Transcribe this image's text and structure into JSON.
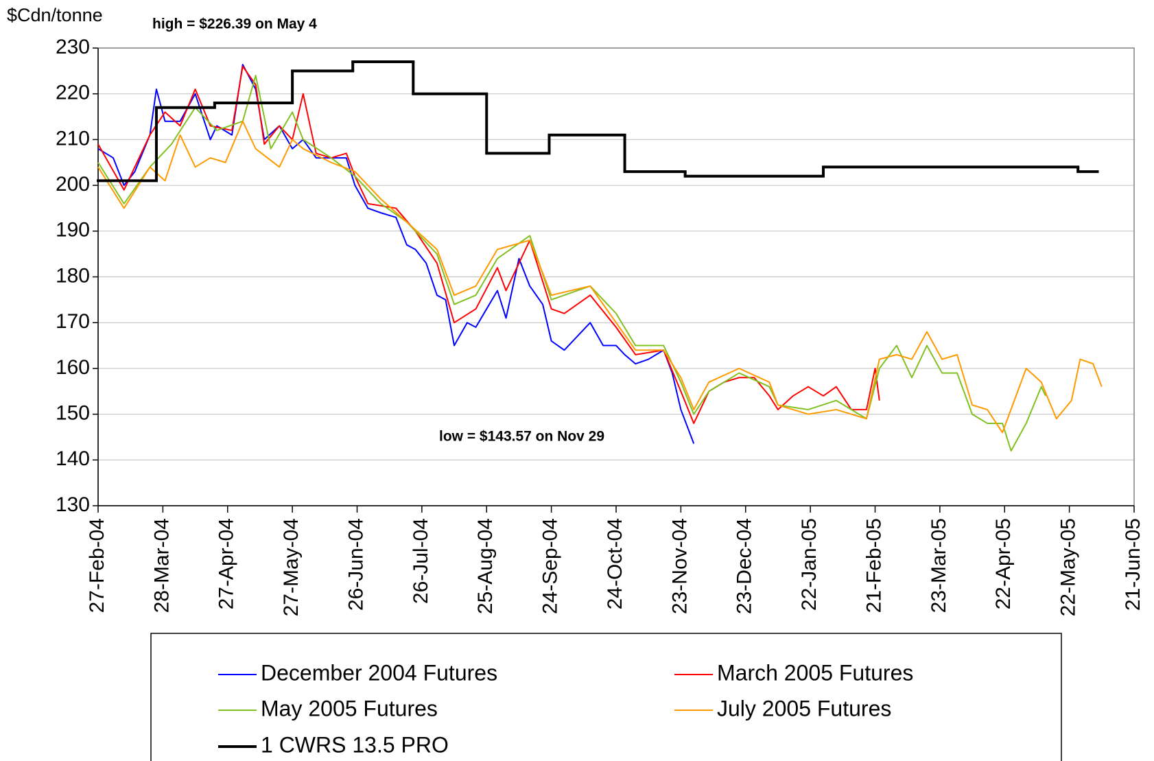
{
  "chart_data": {
    "type": "line",
    "y_label": "$Cdn/tonne",
    "annotations": [
      "high = $226.39 on May 4",
      "low = $143.57 on Nov 29"
    ],
    "ylim": [
      130,
      230
    ],
    "yticks": [
      130,
      140,
      150,
      160,
      170,
      180,
      190,
      200,
      210,
      220,
      230
    ],
    "grid": true,
    "xlim": [
      "2004-02-27",
      "2005-06-21"
    ],
    "xticks": [
      {
        "value": "2004-02-27",
        "label": "27-Feb-04"
      },
      {
        "value": "2004-03-28",
        "label": "28-Mar-04"
      },
      {
        "value": "2004-04-27",
        "label": "27-Apr-04"
      },
      {
        "value": "2004-05-27",
        "label": "27-May-04"
      },
      {
        "value": "2004-06-26",
        "label": "26-Jun-04"
      },
      {
        "value": "2004-07-26",
        "label": "26-Jul-04"
      },
      {
        "value": "2004-08-25",
        "label": "25-Aug-04"
      },
      {
        "value": "2004-09-24",
        "label": "24-Sep-04"
      },
      {
        "value": "2004-10-24",
        "label": "24-Oct-04"
      },
      {
        "value": "2004-11-23",
        "label": "23-Nov-04"
      },
      {
        "value": "2004-12-23",
        "label": "23-Dec-04"
      },
      {
        "value": "2005-01-22",
        "label": "22-Jan-05"
      },
      {
        "value": "2005-02-21",
        "label": "21-Feb-05"
      },
      {
        "value": "2005-03-23",
        "label": "23-Mar-05"
      },
      {
        "value": "2005-04-22",
        "label": "22-Apr-05"
      },
      {
        "value": "2005-05-22",
        "label": "22-May-05"
      },
      {
        "value": "2005-06-21",
        "label": "21-Jun-05"
      }
    ],
    "series": [
      {
        "name": "December 2004 Futures",
        "color": "#0000ff",
        "x": [
          "2004-02-27",
          "2004-03-05",
          "2004-03-10",
          "2004-03-15",
          "2004-03-22",
          "2004-03-25",
          "2004-03-29",
          "2004-04-05",
          "2004-04-12",
          "2004-04-19",
          "2004-04-22",
          "2004-04-29",
          "2004-05-04",
          "2004-05-10",
          "2004-05-14",
          "2004-05-21",
          "2004-05-27",
          "2004-06-01",
          "2004-06-07",
          "2004-06-14",
          "2004-06-21",
          "2004-06-25",
          "2004-07-01",
          "2004-07-07",
          "2004-07-14",
          "2004-07-19",
          "2004-07-23",
          "2004-07-28",
          "2004-08-02",
          "2004-08-06",
          "2004-08-10",
          "2004-08-16",
          "2004-08-20",
          "2004-08-25",
          "2004-08-30",
          "2004-09-03",
          "2004-09-09",
          "2004-09-14",
          "2004-09-20",
          "2004-09-24",
          "2004-09-30",
          "2004-10-06",
          "2004-10-12",
          "2004-10-18",
          "2004-10-24",
          "2004-10-28",
          "2004-11-02",
          "2004-11-08",
          "2004-11-15",
          "2004-11-19",
          "2004-11-23",
          "2004-11-29"
        ],
        "values": [
          208,
          206,
          200,
          203,
          211,
          221,
          214,
          214,
          220,
          210,
          213,
          211,
          226.39,
          221,
          210,
          213,
          208,
          210,
          206,
          206,
          206,
          200,
          195,
          194,
          193,
          187,
          186,
          183,
          176,
          175,
          165,
          170,
          169,
          173,
          177,
          171,
          184,
          178,
          174,
          166,
          164,
          167,
          170,
          165,
          165,
          163,
          161,
          162,
          164,
          159,
          151,
          143.57
        ]
      },
      {
        "name": "March 2005 Futures",
        "color": "#ff0000",
        "x": [
          "2004-02-27",
          "2004-03-10",
          "2004-03-22",
          "2004-03-29",
          "2004-04-05",
          "2004-04-12",
          "2004-04-19",
          "2004-04-29",
          "2004-05-04",
          "2004-05-10",
          "2004-05-14",
          "2004-05-21",
          "2004-05-27",
          "2004-06-01",
          "2004-06-07",
          "2004-06-14",
          "2004-06-21",
          "2004-06-25",
          "2004-07-01",
          "2004-07-14",
          "2004-07-23",
          "2004-08-02",
          "2004-08-10",
          "2004-08-20",
          "2004-08-30",
          "2004-09-03",
          "2004-09-14",
          "2004-09-24",
          "2004-09-30",
          "2004-10-12",
          "2004-10-24",
          "2004-11-02",
          "2004-11-15",
          "2004-11-23",
          "2004-11-29",
          "2004-12-06",
          "2004-12-13",
          "2004-12-20",
          "2004-12-27",
          "2005-01-03",
          "2005-01-07",
          "2005-01-14",
          "2005-01-21",
          "2005-01-28",
          "2005-02-03",
          "2005-02-10",
          "2005-02-17",
          "2005-02-21",
          "2005-02-23"
        ],
        "values": [
          209,
          199,
          211,
          216,
          213,
          221,
          213,
          212,
          226,
          222,
          209,
          213,
          210,
          220,
          207,
          206,
          207,
          202,
          196,
          195,
          190,
          183,
          170,
          173,
          182,
          177,
          188,
          173,
          172,
          176,
          169,
          163,
          164,
          155,
          148,
          155,
          157,
          158,
          158,
          154,
          151,
          154,
          156,
          154,
          156,
          151,
          151,
          160,
          153
        ]
      },
      {
        "name": "May 2005 Futures",
        "color": "#80c020",
        "x": [
          "2004-02-27",
          "2004-03-10",
          "2004-03-22",
          "2004-04-01",
          "2004-04-12",
          "2004-04-22",
          "2004-05-04",
          "2004-05-10",
          "2004-05-17",
          "2004-05-27",
          "2004-06-01",
          "2004-06-14",
          "2004-06-25",
          "2004-07-07",
          "2004-07-19",
          "2004-08-02",
          "2004-08-10",
          "2004-08-20",
          "2004-08-30",
          "2004-09-14",
          "2004-09-24",
          "2004-10-12",
          "2004-10-24",
          "2004-11-02",
          "2004-11-15",
          "2004-11-23",
          "2004-11-29",
          "2004-12-06",
          "2004-12-20",
          "2005-01-03",
          "2005-01-07",
          "2005-01-21",
          "2005-02-03",
          "2005-02-17",
          "2005-02-23",
          "2005-03-03",
          "2005-03-10",
          "2005-03-17",
          "2005-03-24",
          "2005-03-31",
          "2005-04-07",
          "2005-04-14",
          "2005-04-21",
          "2005-04-25",
          "2005-05-02",
          "2005-05-09",
          "2005-05-11"
        ],
        "values": [
          205,
          196,
          204,
          209,
          217,
          212,
          214,
          224,
          208,
          216,
          210,
          206,
          202,
          196,
          192,
          185,
          174,
          176,
          184,
          189,
          175,
          178,
          172,
          165,
          165,
          157,
          150,
          155,
          159,
          156,
          152,
          151,
          153,
          149,
          160,
          165,
          158,
          165,
          159,
          159,
          150,
          148,
          148,
          142,
          148,
          156,
          154
        ]
      },
      {
        "name": "July 2005 Futures",
        "color": "#ff9900",
        "x": [
          "2004-02-27",
          "2004-03-10",
          "2004-03-22",
          "2004-03-29",
          "2004-04-05",
          "2004-04-12",
          "2004-04-19",
          "2004-04-26",
          "2004-05-04",
          "2004-05-10",
          "2004-05-21",
          "2004-05-27",
          "2004-06-01",
          "2004-06-14",
          "2004-06-25",
          "2004-07-07",
          "2004-07-19",
          "2004-08-02",
          "2004-08-10",
          "2004-08-20",
          "2004-08-30",
          "2004-09-14",
          "2004-09-24",
          "2004-10-12",
          "2004-10-24",
          "2004-11-02",
          "2004-11-15",
          "2004-11-23",
          "2004-11-29",
          "2004-12-06",
          "2004-12-20",
          "2005-01-03",
          "2005-01-07",
          "2005-01-21",
          "2005-02-03",
          "2005-02-17",
          "2005-02-23",
          "2005-03-03",
          "2005-03-10",
          "2005-03-17",
          "2005-03-24",
          "2005-03-31",
          "2005-04-07",
          "2005-04-14",
          "2005-04-21",
          "2005-05-02",
          "2005-05-09",
          "2005-05-16",
          "2005-05-23",
          "2005-05-27",
          "2005-06-02",
          "2005-06-06"
        ],
        "values": [
          204,
          195,
          204,
          201,
          211,
          204,
          206,
          205,
          214,
          208,
          204,
          210,
          208,
          205,
          203,
          197,
          192,
          186,
          176,
          178,
          186,
          188,
          176,
          178,
          170,
          164,
          164,
          158,
          151,
          157,
          160,
          157,
          152,
          150,
          151,
          149,
          162,
          163,
          162,
          168,
          162,
          163,
          152,
          151,
          146,
          160,
          157,
          149,
          153,
          162,
          161,
          156
        ]
      },
      {
        "name": "1 CWRS 13.5 PRO",
        "color": "#000000",
        "step": true,
        "x_end": "2005-06-04",
        "x": [
          "2004-02-27",
          "2004-03-25",
          "2004-04-21",
          "2004-05-27",
          "2004-06-24",
          "2004-07-22",
          "2004-08-25",
          "2004-09-23",
          "2004-10-28",
          "2004-11-25",
          "2005-01-28",
          "2005-05-26"
        ],
        "values": [
          201,
          217,
          218,
          225,
          227,
          220,
          207,
          211,
          203,
          202,
          204,
          203
        ]
      }
    ]
  }
}
